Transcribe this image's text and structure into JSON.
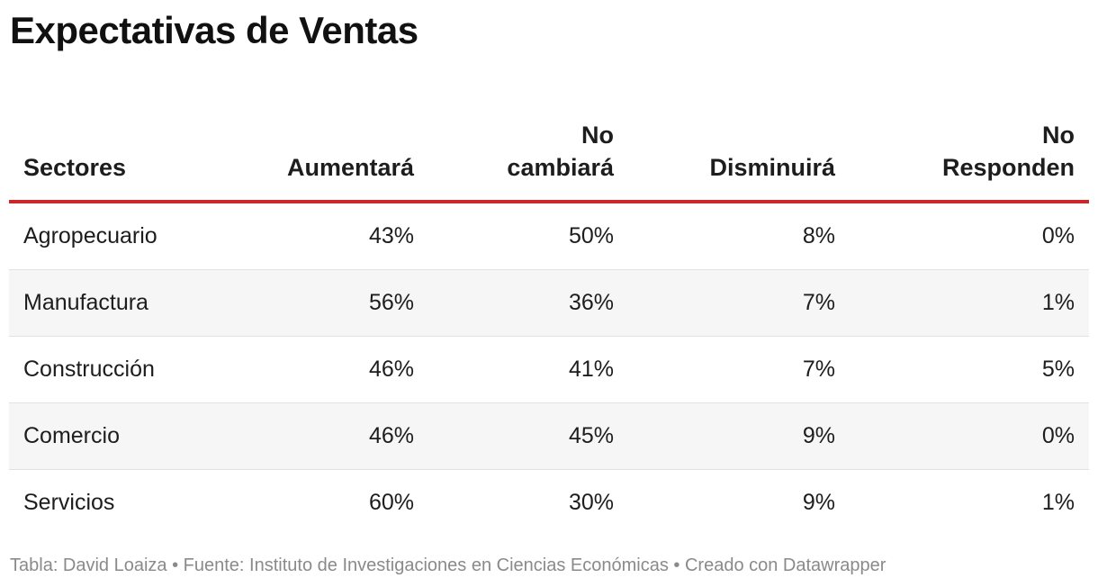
{
  "title": "Expectativas de Ventas",
  "chart_data": {
    "type": "table",
    "columns": [
      "Sectores",
      "Aumentará",
      "No cambiará",
      "Disminuirá",
      "No Responden"
    ],
    "rows": [
      {
        "sector": "Agropecuario",
        "values": [
          "43%",
          "50%",
          "8%",
          "0%"
        ]
      },
      {
        "sector": "Manufactura",
        "values": [
          "56%",
          "36%",
          "7%",
          "1%"
        ]
      },
      {
        "sector": "Construcción",
        "values": [
          "46%",
          "41%",
          "7%",
          "5%"
        ]
      },
      {
        "sector": "Comercio",
        "values": [
          "46%",
          "45%",
          "9%",
          "0%"
        ]
      },
      {
        "sector": "Servicios",
        "values": [
          "60%",
          "30%",
          "9%",
          "1%"
        ]
      }
    ]
  },
  "header_lines": [
    [
      "Sectores"
    ],
    [
      "Aumentará"
    ],
    [
      "No",
      "cambiará"
    ],
    [
      "Disminuirá"
    ],
    [
      "No",
      "Responden"
    ]
  ],
  "footer": {
    "text": "Tabla: David Loaiza • Fuente: Instituto de Investigaciones en Ciencias Económicas • Creado con Datawrapper"
  },
  "colors": {
    "header_rule": "#c9282d",
    "zebra": "#f6f6f6",
    "footer_text": "#8a8a8a"
  }
}
